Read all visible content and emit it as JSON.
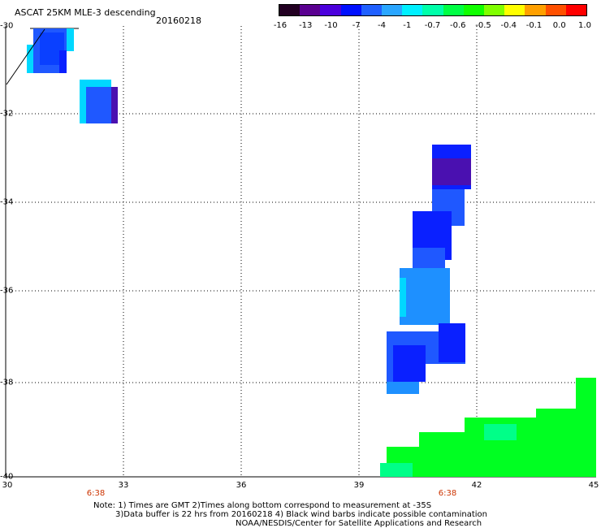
{
  "title": "ASCAT 25KM MLE-3 descending",
  "date": "20160218",
  "colorbar": {
    "labels": [
      "-16",
      "-13",
      "-10",
      "-7",
      "-4",
      "-1",
      "-0.7",
      "-0.6",
      "-0.5",
      "-0.4",
      "-0.1",
      "0.0",
      "1.0"
    ],
    "colors": [
      "#220022",
      "#5a0090",
      "#4b00dc",
      "#0010ff",
      "#2060ff",
      "#2aa6ff",
      "#00f0ff",
      "#00ffaa",
      "#00ff44",
      "#10ff00",
      "#80ff00",
      "#ffff00",
      "#ffa000",
      "#ff5000",
      "#ff0000"
    ]
  },
  "lat_labels": [
    "-30",
    "-32",
    "-34",
    "-36",
    "-38",
    "-40"
  ],
  "lon_labels": [
    "30",
    "33",
    "36",
    "39",
    "42",
    "45"
  ],
  "time_labels": [
    "6:38",
    "6:38"
  ],
  "notes": [
    "Note: 1) Times are GMT 2)Times along bottom correspond to measurement at -35S",
    "3)Data buffer is 22 hrs from 20160218 4) Black wind barbs indicate possible contamination",
    "NOAA/NESDIS/Center for Satellite Applications and Research"
  ],
  "colors": {
    "deep_purple": "#4a10b0",
    "blue": "#0a20ff",
    "mid_blue": "#1f58ff",
    "light_blue": "#1e90ff",
    "cyan": "#00d8ff",
    "green": "#00ff22",
    "teal_green": "#00ff88",
    "axis_time": "#cc3300"
  }
}
